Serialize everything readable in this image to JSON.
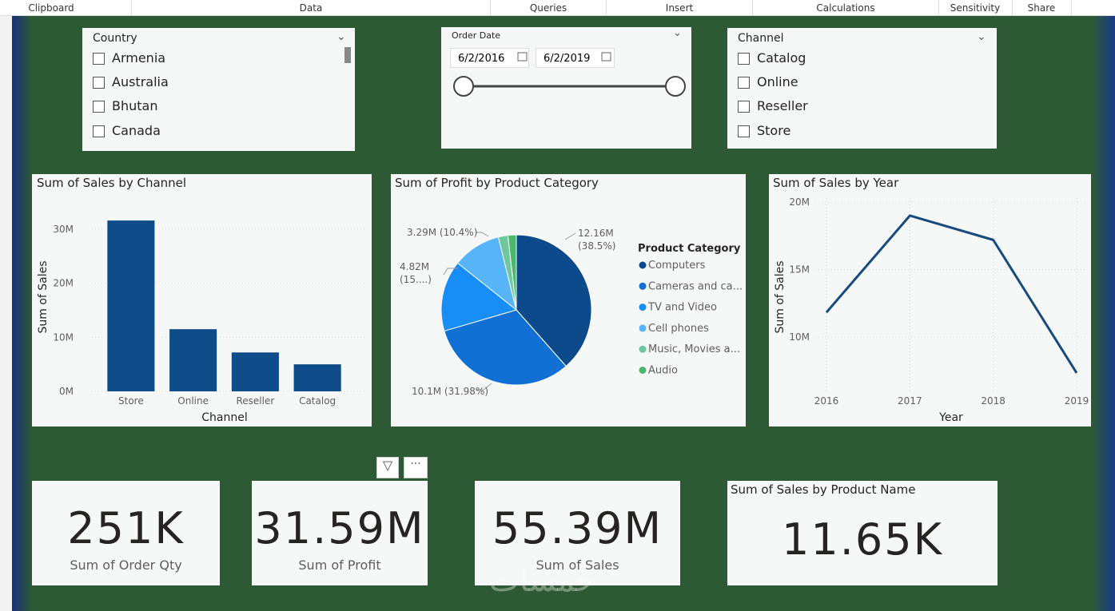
{
  "ribbon": {
    "tabs": [
      "Clipboard",
      "Data",
      "Queries",
      "Insert",
      "Calculations",
      "Sensitivity",
      "Share"
    ]
  },
  "slicers": {
    "country": {
      "title": "Country",
      "items": [
        "Armenia",
        "Australia",
        "Bhutan",
        "Canada"
      ]
    },
    "order_date": {
      "title": "Order Date",
      "start": "6/2/2016",
      "end": "6/2/2019"
    },
    "channel": {
      "title": "Channel",
      "items": [
        "Catalog",
        "Online",
        "Reseller",
        "Store"
      ]
    }
  },
  "chart_data": [
    {
      "type": "bar",
      "title": "Sum of Sales by Channel",
      "x_label": "Channel",
      "y_label": "Sum of Sales",
      "categories": [
        "Store",
        "Online",
        "Reseller",
        "Catalog"
      ],
      "values": [
        31.6,
        11.5,
        7.2,
        5.0
      ],
      "color": "#0f4c8a",
      "ylim": [
        0,
        32.5
      ],
      "yticks": [
        {
          "value": 0,
          "label": "0M"
        },
        {
          "value": 10,
          "label": "10M"
        },
        {
          "value": 20,
          "label": "20M"
        },
        {
          "value": 30,
          "label": "30M"
        }
      ],
      "grid": true
    },
    {
      "type": "pie",
      "title": "Sum of Profit by Product Category",
      "legend_title": "Product Category",
      "categories": [
        "Computers",
        "Cameras and ca...",
        "TV and Video",
        "Cell phones",
        "Music, Movies a...",
        "Audio"
      ],
      "values": [
        12.16,
        10.1,
        4.82,
        3.29,
        0.65,
        0.57
      ],
      "value_labels": [
        "12.16M (38.5%)",
        "10.1M (31.98%)",
        "4.82M (15....)",
        "3.29M (10.4%)",
        null,
        null
      ],
      "colors": [
        "#0d4a8c",
        "#1170d4",
        "#168ef5",
        "#57b4f7",
        "#6fc7a0",
        "#4cb86b"
      ]
    },
    {
      "type": "line",
      "title": "Sum of Sales by Year",
      "x_label": "Year",
      "y_label": "Sum of Sales",
      "x": [
        2016,
        2017,
        2018,
        2019
      ],
      "series": [
        {
          "values": [
            11.83,
            19.0,
            17.2,
            7.34
          ],
          "color": "#174a7e"
        }
      ],
      "xlim": [
        2016,
        2019
      ],
      "xticks": [
        2016,
        2017,
        2018,
        2019
      ],
      "ylim": [
        6,
        20.3
      ],
      "yticks": [
        {
          "value": 10,
          "label": "10M"
        },
        {
          "value": 15,
          "label": "15M"
        },
        {
          "value": 20,
          "label": "20M"
        }
      ],
      "grid": true
    }
  ],
  "cards": [
    {
      "value": "251K",
      "label": "Sum of Order Qty"
    },
    {
      "value": "31.59M",
      "label": "Sum of Profit"
    },
    {
      "value": "55.39M",
      "label": "Sum of Sales"
    }
  ],
  "product_card": {
    "title": "Sum of Sales by Product Name",
    "value": "11.65K"
  },
  "watermark": "خمسات"
}
